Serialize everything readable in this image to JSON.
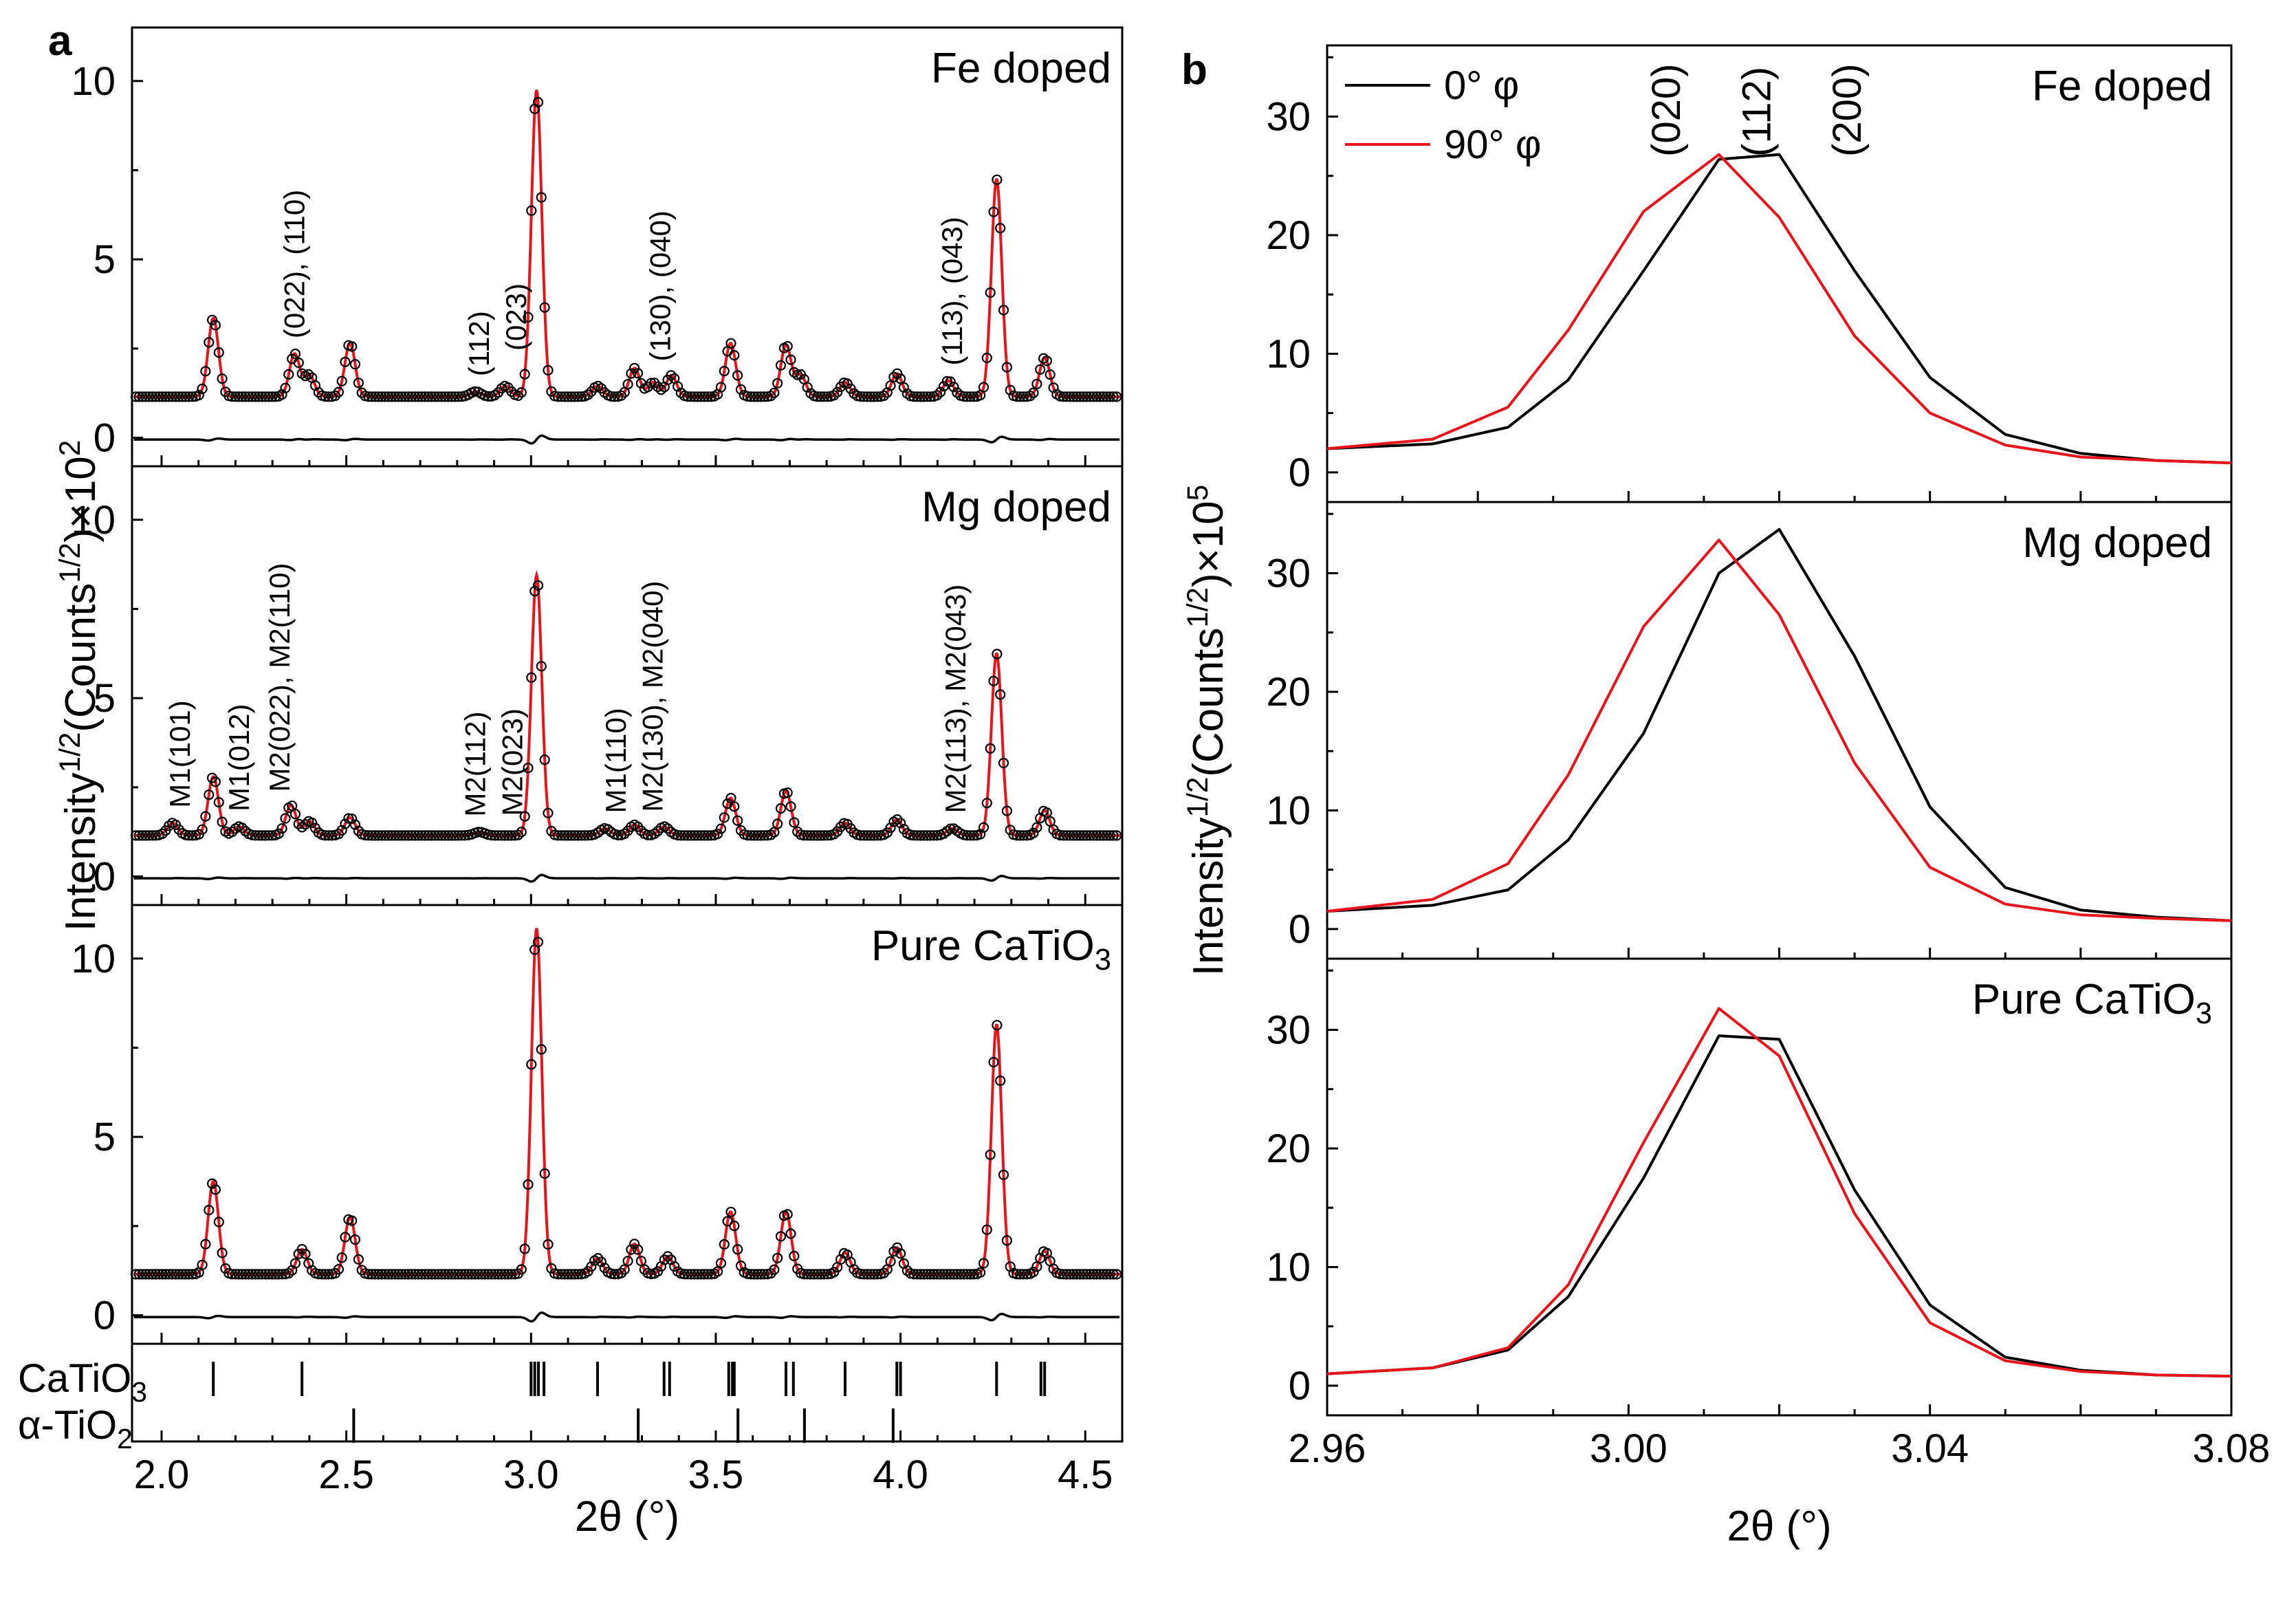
{
  "chart_data": [
    {
      "panel": "a",
      "type": "line+scatter",
      "xlabel": "2θ (°)",
      "ylabel": "Intensity^1/2(Counts^1/2)×10^2",
      "ylabel_parts": {
        "base": "Intensity",
        "sup1": "1/2",
        "mid": "(Counts",
        "sup2": "1/2",
        "tail": ")×10",
        "sup3": "2"
      },
      "xlim": [
        1.92,
        4.6
      ],
      "xticks": [
        2.0,
        2.5,
        3.0,
        3.5,
        4.0,
        4.5
      ],
      "xtick_labels": [
        "2.0",
        "2.5",
        "3.0",
        "3.5",
        "4.0",
        "4.5"
      ],
      "ylim": [
        -0.8,
        11.5
      ],
      "yticks": [
        0,
        5,
        10
      ],
      "ytick_labels": [
        "0",
        "5",
        "10"
      ],
      "series_styles": {
        "observed": "open black circles",
        "calculated": "red line",
        "difference": "black line"
      },
      "subpanels": [
        {
          "label": "Fe doped",
          "baseline": 1.15,
          "peaks": [
            [
              2.14,
              2.2
            ],
            [
              2.36,
              1.2
            ],
            [
              2.4,
              0.6
            ],
            [
              2.51,
              1.5
            ],
            [
              2.85,
              0.15
            ],
            [
              2.93,
              0.3
            ],
            [
              3.015,
              8.6
            ],
            [
              3.18,
              0.3
            ],
            [
              3.28,
              0.8
            ],
            [
              3.33,
              0.4
            ],
            [
              3.38,
              0.6
            ],
            [
              3.54,
              1.5
            ],
            [
              3.69,
              1.45
            ],
            [
              3.73,
              0.6
            ],
            [
              3.85,
              0.4
            ],
            [
              3.99,
              0.65
            ],
            [
              4.13,
              0.45
            ],
            [
              4.26,
              6.1
            ],
            [
              4.39,
              1.1
            ]
          ],
          "annotations": [
            {
              "text": "(022), (110)",
              "x": 2.36
            },
            {
              "text": "(112)",
              "x": 2.86
            },
            {
              "text": "(023)",
              "x": 2.96
            },
            {
              "text": "(130), (040)",
              "x": 3.35
            },
            {
              "text": "(113), (043)",
              "x": 4.14
            }
          ]
        },
        {
          "label": "Mg doped",
          "baseline": 1.15,
          "peaks": [
            [
              2.03,
              0.35
            ],
            [
              2.14,
              1.65
            ],
            [
              2.21,
              0.25
            ],
            [
              2.35,
              0.85
            ],
            [
              2.4,
              0.4
            ],
            [
              2.51,
              0.5
            ],
            [
              2.86,
              0.1
            ],
            [
              3.015,
              7.3
            ],
            [
              3.2,
              0.2
            ],
            [
              3.28,
              0.3
            ],
            [
              3.36,
              0.25
            ],
            [
              3.54,
              1.05
            ],
            [
              3.69,
              1.25
            ],
            [
              3.85,
              0.35
            ],
            [
              3.99,
              0.45
            ],
            [
              4.14,
              0.2
            ],
            [
              4.26,
              5.1
            ],
            [
              4.39,
              0.7
            ]
          ],
          "annotations": [
            {
              "text": "M1(101)",
              "x": 2.05
            },
            {
              "text": "M1(012)",
              "x": 2.21
            },
            {
              "text": "M2(022), M2(110)",
              "x": 2.32
            },
            {
              "text": "M2(112)",
              "x": 2.85
            },
            {
              "text": "M2(023)",
              "x": 2.95
            },
            {
              "text": "M1(110)",
              "x": 3.23
            },
            {
              "text": "M2(130), M2(040)",
              "x": 3.33
            },
            {
              "text": "M2(113), M2(043)",
              "x": 4.15
            }
          ]
        },
        {
          "label": "Pure CaTiO",
          "label_sub": "3",
          "baseline": 1.15,
          "peaks": [
            [
              2.14,
              2.6
            ],
            [
              2.38,
              0.7
            ],
            [
              2.51,
              1.6
            ],
            [
              3.015,
              9.7
            ],
            [
              3.18,
              0.45
            ],
            [
              3.28,
              0.85
            ],
            [
              3.37,
              0.5
            ],
            [
              3.54,
              1.75
            ],
            [
              3.69,
              1.75
            ],
            [
              3.85,
              0.6
            ],
            [
              3.99,
              0.75
            ],
            [
              4.26,
              7.0
            ],
            [
              4.39,
              0.65
            ]
          ]
        }
      ],
      "reflections": [
        {
          "label": "CaTiO",
          "label_sub": "3",
          "positions": [
            2.14,
            2.38,
            3.0,
            3.01,
            3.02,
            3.035,
            3.18,
            3.36,
            3.375,
            3.535,
            3.545,
            3.55,
            3.69,
            3.71,
            3.85,
            3.99,
            4.0,
            4.26,
            4.38,
            4.39
          ]
        },
        {
          "label": "α-TiO",
          "label_sub": "2",
          "positions": [
            2.52,
            3.29,
            3.56,
            3.74,
            3.98
          ]
        }
      ]
    },
    {
      "panel": "b",
      "type": "line",
      "xlabel": "2θ (°)",
      "ylabel": "Intensity^1/2(Counts^1/2)×10^5",
      "ylabel_parts": {
        "base": "Intensity",
        "sup1": "1/2",
        "mid": "(Counts",
        "sup2": "1/2",
        "tail": ")×10",
        "sup3": "5"
      },
      "xlim": [
        2.96,
        3.08
      ],
      "xticks": [
        2.96,
        2.98,
        3.0,
        3.02,
        3.04,
        3.06,
        3.08
      ],
      "xtick_labels": [
        "2.96",
        "",
        "3.00",
        "",
        "3.04",
        "",
        "3.08"
      ],
      "ylim": [
        -2.5,
        36
      ],
      "yticks": [
        0,
        10,
        20,
        30
      ],
      "ytick_labels": [
        "0",
        "10",
        "20",
        "30"
      ],
      "legend": [
        {
          "name": "0° φ",
          "color": "#000000"
        },
        {
          "name": "90° φ",
          "color": "#e8141c"
        }
      ],
      "legend_position": "top-left",
      "peak_labels": [
        "(020)",
        "(112)",
        "(200)"
      ],
      "x": [
        2.96,
        2.974,
        2.984,
        2.992,
        3.002,
        3.012,
        3.02,
        3.03,
        3.04,
        3.05,
        3.06,
        3.07,
        3.08
      ],
      "subpanels": [
        {
          "label": "Fe doped",
          "series": [
            {
              "name": "0° φ",
              "values": [
                2.0,
                2.4,
                3.8,
                7.8,
                17.0,
                26.4,
                26.8,
                17.0,
                8.0,
                3.2,
                1.6,
                1.0,
                0.8
              ]
            },
            {
              "name": "90° φ",
              "values": [
                2.0,
                2.8,
                5.5,
                12.0,
                22.0,
                26.8,
                21.5,
                11.5,
                5.0,
                2.3,
                1.3,
                1.0,
                0.8
              ]
            }
          ]
        },
        {
          "label": "Mg doped",
          "series": [
            {
              "name": "0° φ",
              "values": [
                1.5,
                2.0,
                3.3,
                7.5,
                16.5,
                30.0,
                33.7,
                23.0,
                10.3,
                3.5,
                1.6,
                1.0,
                0.7
              ]
            },
            {
              "name": "90° φ",
              "values": [
                1.5,
                2.5,
                5.5,
                13.0,
                25.5,
                32.8,
                26.5,
                14.0,
                5.2,
                2.1,
                1.2,
                0.9,
                0.7
              ]
            }
          ]
        },
        {
          "label": "Pure CaTiO",
          "label_sub": "3",
          "series": [
            {
              "name": "0° φ",
              "values": [
                1.0,
                1.5,
                3.0,
                7.5,
                17.5,
                29.5,
                29.2,
                16.5,
                6.8,
                2.4,
                1.3,
                0.9,
                0.8
              ]
            },
            {
              "name": "90° φ",
              "values": [
                1.0,
                1.5,
                3.2,
                8.5,
                20.5,
                31.8,
                27.8,
                14.5,
                5.3,
                2.1,
                1.2,
                0.9,
                0.8
              ]
            }
          ]
        }
      ]
    }
  ],
  "panel_letters": [
    "a",
    "b"
  ]
}
